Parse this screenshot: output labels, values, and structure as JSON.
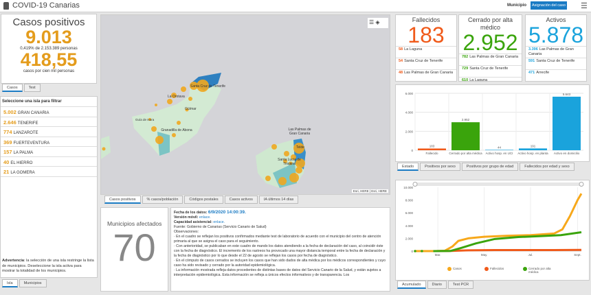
{
  "header": {
    "title": "COVID-19 Canarias",
    "municipio_label": "Municipio",
    "asignacion_button": "Asignación del caso",
    "menu_icon": "hamburger-icon",
    "logo_icon": "coat-of-arms-icon"
  },
  "casos": {
    "title": "Casos positivos",
    "total": "9.013",
    "pct": "0,419% de 2.153.389 personas",
    "rate": "418,55",
    "rate_label": "casos por cien mil personas",
    "tabs": [
      "Casos",
      "Test"
    ]
  },
  "islands": {
    "heading": "Seleccione una isla para filtrar",
    "items": [
      {
        "value": "5.002",
        "name": "GRAN CANARIA"
      },
      {
        "value": "2.646",
        "name": "TENERIFE"
      },
      {
        "value": "774",
        "name": "LANZAROTE"
      },
      {
        "value": "369",
        "name": "FUERTEVENTURA"
      },
      {
        "value": "157",
        "name": "LA PALMA"
      },
      {
        "value": "40",
        "name": "EL HIERRO"
      },
      {
        "value": "21",
        "name": "LA GOMERA"
      }
    ],
    "warning_bold": "Advertencia",
    "warning": ": la selección de una isla restringe la lista de municipios. Deseleccione la isla activa para mostrar la totalidad de los municipios.",
    "tabs": [
      "Isla",
      "Municipios"
    ]
  },
  "map": {
    "labels": [
      "Santa Cruz de Tenerife",
      "La Orotava",
      "Güímar",
      "Guía de Isora",
      "Granadilla de Abona",
      "Las Palmas de Gran Canaria",
      "Telde",
      "Santa Lucía de Tirajana"
    ],
    "attribution": "Esri, HERE | Esri, HERE",
    "tabs": [
      "Casos positivos",
      "% casos/población",
      "Códigos postales",
      "Casos activos",
      "IA últimos 14 días"
    ]
  },
  "municipios": {
    "title": "Municipios afectados",
    "value": "70"
  },
  "info": {
    "fecha_label": "Fecha de los datos:",
    "fecha": "6/9/2020 14:00:39.",
    "movil_label": "Versión móvil:",
    "movil_link": "enlace.",
    "cap_label": "Capacidad asistencial:",
    "cap_link": "enlace.",
    "fuente": "Fuente: Gobierno de Canarias (Servicio Canario de Salud)",
    "obs": "Observaciones:",
    "p1": "· En el cuadro se reflejan los positivos confirmados mediante test de laboratorio de acuerdo con el municipio del centro de atención primaria al que se asigna el caso para el seguimiento.",
    "p2": "· Con anterioridad, se publicaban en este cuadro de mando los datos atendiendo a la fecha de declaración del caso, al coincidir éste con la fecha de diagnóstico. El incremento de los rastreos ha provocado una mayor distancia temporal entre la fecha de declaración y la fecha de diagnóstico por lo que desde el 22 de agosto se reflejan los casos por fecha de diagnóstico.",
    "p3": "· En el cómputo de casos cerrados se incluyen los casos que han sido dados de alta médica por los médicos correspondientes y cuyo caso ha sido revisado y cerrado por la autoridad epidemiológica.",
    "p4": "· La información mostrada refleja datos procedentes de distintas bases de datos del Servicio Canario de la Salud, y están sujetos a interpretación epidemiológica. Esta información se refleja a únicos efectos informativos y de transparencia. Los"
  },
  "cards": [
    {
      "title": "Fallecidos",
      "value": "183",
      "color": "#f05a1a",
      "rows": [
        {
          "v": "58",
          "t": "La Laguna"
        },
        {
          "v": "54",
          "t": "Santa Cruz de Tenerife"
        },
        {
          "v": "48",
          "t": "Las Palmas de Gran Canaria"
        }
      ]
    },
    {
      "title": "Cerrado por alta médico",
      "value": "2.952",
      "color": "#3aa40c",
      "rows": [
        {
          "v": "782",
          "t": "Las Palmas de Gran Canaria"
        },
        {
          "v": "729",
          "t": "Santa Cruz de Tenerife"
        },
        {
          "v": "610",
          "t": "La Laguna"
        }
      ]
    },
    {
      "title": "Activos",
      "value": "5.878",
      "color": "#1aa3dc",
      "rows": [
        {
          "v": "3.396",
          "t": "Las Palmas de Gran Canaria"
        },
        {
          "v": "591",
          "t": "Santa Cruz de Tenerife"
        },
        {
          "v": "471",
          "t": "Arrecife"
        }
      ]
    }
  ],
  "chart_data": [
    {
      "type": "bar",
      "categories": [
        "Fallecido",
        "Cerrado por alta médica",
        "Activo hosp. en UCI",
        "Activo hosp. en planta",
        "Activo en domicilio"
      ],
      "values": [
        183,
        2952,
        44,
        191,
        5643
      ],
      "labels": [
        "183",
        "2.952",
        "44",
        "191",
        "5.643"
      ],
      "colors": [
        "#f05a1a",
        "#3aa40c",
        "#1aa3dc",
        "#1aa3dc",
        "#1aa3dc"
      ],
      "ylim": [
        0,
        6000
      ],
      "yticks": [
        "0",
        "2.000",
        "4.000",
        "6.000"
      ],
      "grid": true,
      "tabs": [
        "Estado",
        "Positivos por sexo",
        "Positivos por grupo de edad",
        "Fallecidos por edad y sexo"
      ]
    },
    {
      "type": "line",
      "ylim": [
        0,
        10000
      ],
      "yticks": [
        "0",
        "2.000",
        "4.000",
        "6.000",
        "8.000",
        "10.000"
      ],
      "xticks": [
        {
          "label": "Mar.",
          "date": "2020-03-01"
        },
        {
          "label": "May.",
          "date": "2020-05-01"
        },
        {
          "label": "Jul.",
          "date": "2020-07-01"
        },
        {
          "label": "Sept.",
          "date": "2020-09-01"
        }
      ],
      "xlim": [
        "2020-01-31",
        "2020-09-06"
      ],
      "legend": "bottom",
      "grid": true,
      "series": [
        {
          "name": "Casos",
          "color": "#f7a81b",
          "points": [
            [
              "2020-01-31",
              0
            ],
            [
              "2020-02-09",
              0
            ],
            [
              "2020-02-24",
              0
            ],
            [
              "2020-03-10",
              50
            ],
            [
              "2020-03-20",
              700
            ],
            [
              "2020-03-28",
              1600
            ],
            [
              "2020-04-10",
              2000
            ],
            [
              "2020-05-01",
              2250
            ],
            [
              "2020-06-01",
              2400
            ],
            [
              "2020-07-01",
              2500
            ],
            [
              "2020-08-01",
              2750
            ],
            [
              "2020-08-12",
              3400
            ],
            [
              "2020-08-22",
              5500
            ],
            [
              "2020-09-01",
              8000
            ],
            [
              "2020-09-06",
              9013
            ]
          ]
        },
        {
          "name": "Fallecidos",
          "color": "#f05a1a",
          "points": [
            [
              "2020-02-24",
              0
            ],
            [
              "2020-03-15",
              20
            ],
            [
              "2020-04-10",
              120
            ],
            [
              "2020-05-15",
              155
            ],
            [
              "2020-08-01",
              165
            ],
            [
              "2020-09-06",
              183
            ]
          ]
        },
        {
          "name": "Cerrado por alta médica",
          "color": "#3aa40c",
          "points": [
            [
              "2020-02-24",
              0
            ],
            [
              "2020-03-18",
              30
            ],
            [
              "2020-04-01",
              500
            ],
            [
              "2020-04-20",
              1200
            ],
            [
              "2020-05-15",
              1900
            ],
            [
              "2020-06-15",
              2200
            ],
            [
              "2020-07-15",
              2350
            ],
            [
              "2020-08-10",
              2500
            ],
            [
              "2020-09-06",
              2952
            ]
          ]
        }
      ],
      "tabs": [
        "Acumulado",
        "Diario",
        "Test PCR"
      ]
    }
  ]
}
